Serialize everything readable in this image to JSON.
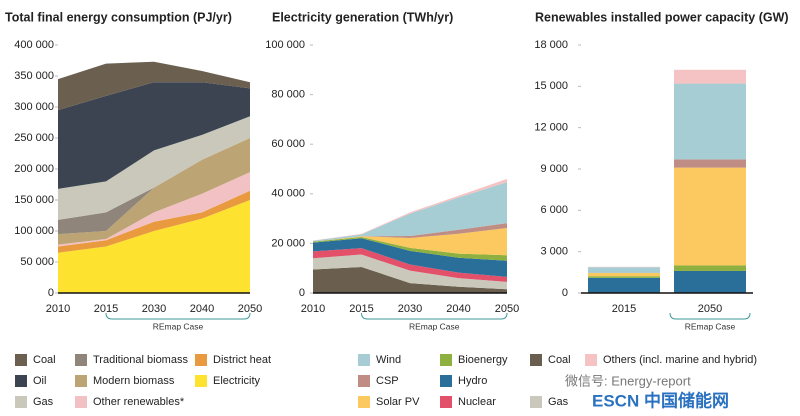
{
  "chart_data": [
    {
      "type": "area",
      "title": "Total final energy consumption (PJ/yr)",
      "categories": [
        "2010",
        "2015",
        "2030",
        "2040",
        "2050"
      ],
      "annotation": "REmap Case",
      "ylim": [
        0,
        400000
      ],
      "yticks": [
        0,
        {
          "value": 50000,
          "label": "50 000"
        },
        {
          "value": 100000,
          "label": "100 000"
        },
        {
          "value": 150000,
          "label": "150 000"
        },
        {
          "value": 200000,
          "label": "200 000"
        },
        {
          "value": 250000,
          "label": "250 000"
        },
        {
          "value": 300000,
          "label": "300 000"
        },
        {
          "value": 350000,
          "label": "350 000"
        },
        {
          "value": 400000,
          "label": "400 000"
        }
      ],
      "series": [
        {
          "name": "Electricity",
          "color": "#fde330",
          "values": [
            65000,
            75000,
            100000,
            120000,
            150000
          ]
        },
        {
          "name": "District heat",
          "color": "#e99a3f",
          "values": [
            10000,
            10000,
            15000,
            10000,
            15000
          ]
        },
        {
          "name": "Other renewables*",
          "color": "#f2c1c4",
          "values": [
            3000,
            2000,
            15000,
            30000,
            30000
          ]
        },
        {
          "name": "Modern biomass",
          "color": "#bda474",
          "values": [
            17000,
            13000,
            40000,
            55000,
            55000
          ]
        },
        {
          "name": "Traditional biomass",
          "color": "#8f857a",
          "values": [
            23000,
            30000,
            0,
            0,
            0
          ]
        },
        {
          "name": "Gas",
          "color": "#c9c8bb",
          "values": [
            50000,
            50000,
            60000,
            40000,
            35000
          ]
        },
        {
          "name": "Oil",
          "color": "#3b4450",
          "values": [
            127000,
            138000,
            110000,
            85000,
            45000
          ]
        },
        {
          "name": "Coal",
          "color": "#6b6050",
          "values": [
            50000,
            52000,
            33000,
            18000,
            10000
          ]
        }
      ]
    },
    {
      "type": "area",
      "title": "Electricity generation (TWh/yr)",
      "categories": [
        "2010",
        "2015",
        "2030",
        "2040",
        "2050"
      ],
      "annotation": "REmap Case",
      "ylim": [
        0,
        100000
      ],
      "yticks": [
        0,
        {
          "value": 20000,
          "label": "20 000"
        },
        {
          "value": 40000,
          "label": "40 000"
        },
        {
          "value": 60000,
          "label": "60 000"
        },
        {
          "value": 80000,
          "label": "80 000"
        },
        {
          "value": 100000,
          "label": "100 000"
        }
      ],
      "series": [
        {
          "name": "Coal",
          "color": "#6a5f4e",
          "values": [
            9500,
            10500,
            4000,
            2500,
            1500
          ]
        },
        {
          "name": "Gas",
          "color": "#c9c8bb",
          "values": [
            4500,
            5000,
            5000,
            3500,
            3000
          ]
        },
        {
          "name": "Nuclear",
          "color": "#e2506a",
          "values": [
            2800,
            2600,
            2500,
            2200,
            2000
          ]
        },
        {
          "name": "Hydro",
          "color": "#2a6f99",
          "values": [
            3500,
            4000,
            5500,
            6000,
            6500
          ]
        },
        {
          "name": "Bioenergy",
          "color": "#8eb040",
          "values": [
            400,
            500,
            1200,
            1700,
            2200
          ]
        },
        {
          "name": "Solar PV",
          "color": "#fbc95f",
          "values": [
            30,
            250,
            4000,
            8000,
            11000
          ]
        },
        {
          "name": "CSP",
          "color": "#c08d84",
          "values": [
            0,
            10,
            800,
            1600,
            2000
          ]
        },
        {
          "name": "Wind",
          "color": "#a6cdd3",
          "values": [
            350,
            800,
            9000,
            13000,
            16500
          ]
        },
        {
          "name": "Others (incl. marine and hybrid)",
          "color": "#f5c3c3",
          "values": [
            100,
            200,
            500,
            700,
            1300
          ]
        }
      ]
    },
    {
      "type": "bar",
      "title": "Renewables installed power capacity (GW)",
      "categories": [
        "2015",
        "2050"
      ],
      "annotation": "REmap Case",
      "ylim": [
        0,
        18000
      ],
      "yticks": [
        0,
        {
          "value": 3000,
          "label": "3 000"
        },
        {
          "value": 6000,
          "label": "6 000"
        },
        {
          "value": 9000,
          "label": "9 000"
        },
        {
          "value": 12000,
          "label": "12 000"
        },
        {
          "value": 15000,
          "label": "15 000"
        },
        {
          "value": 18000,
          "label": "18 000"
        }
      ],
      "series": [
        {
          "color": "#2a6f99",
          "values": [
            1100,
            1600
          ]
        },
        {
          "color": "#8eb040",
          "values": [
            120,
            400
          ]
        },
        {
          "color": "#fbc95f",
          "values": [
            230,
            7100
          ]
        },
        {
          "color": "#c08d84",
          "values": [
            5,
            600
          ]
        },
        {
          "color": "#a6cdd3",
          "values": [
            420,
            5500
          ]
        },
        {
          "color": "#f5c3c3",
          "values": [
            25,
            1000
          ]
        }
      ]
    }
  ],
  "watermark": {
    "line1": "微信号: Energy-report",
    "line2": "ESCN 中国储能网"
  }
}
